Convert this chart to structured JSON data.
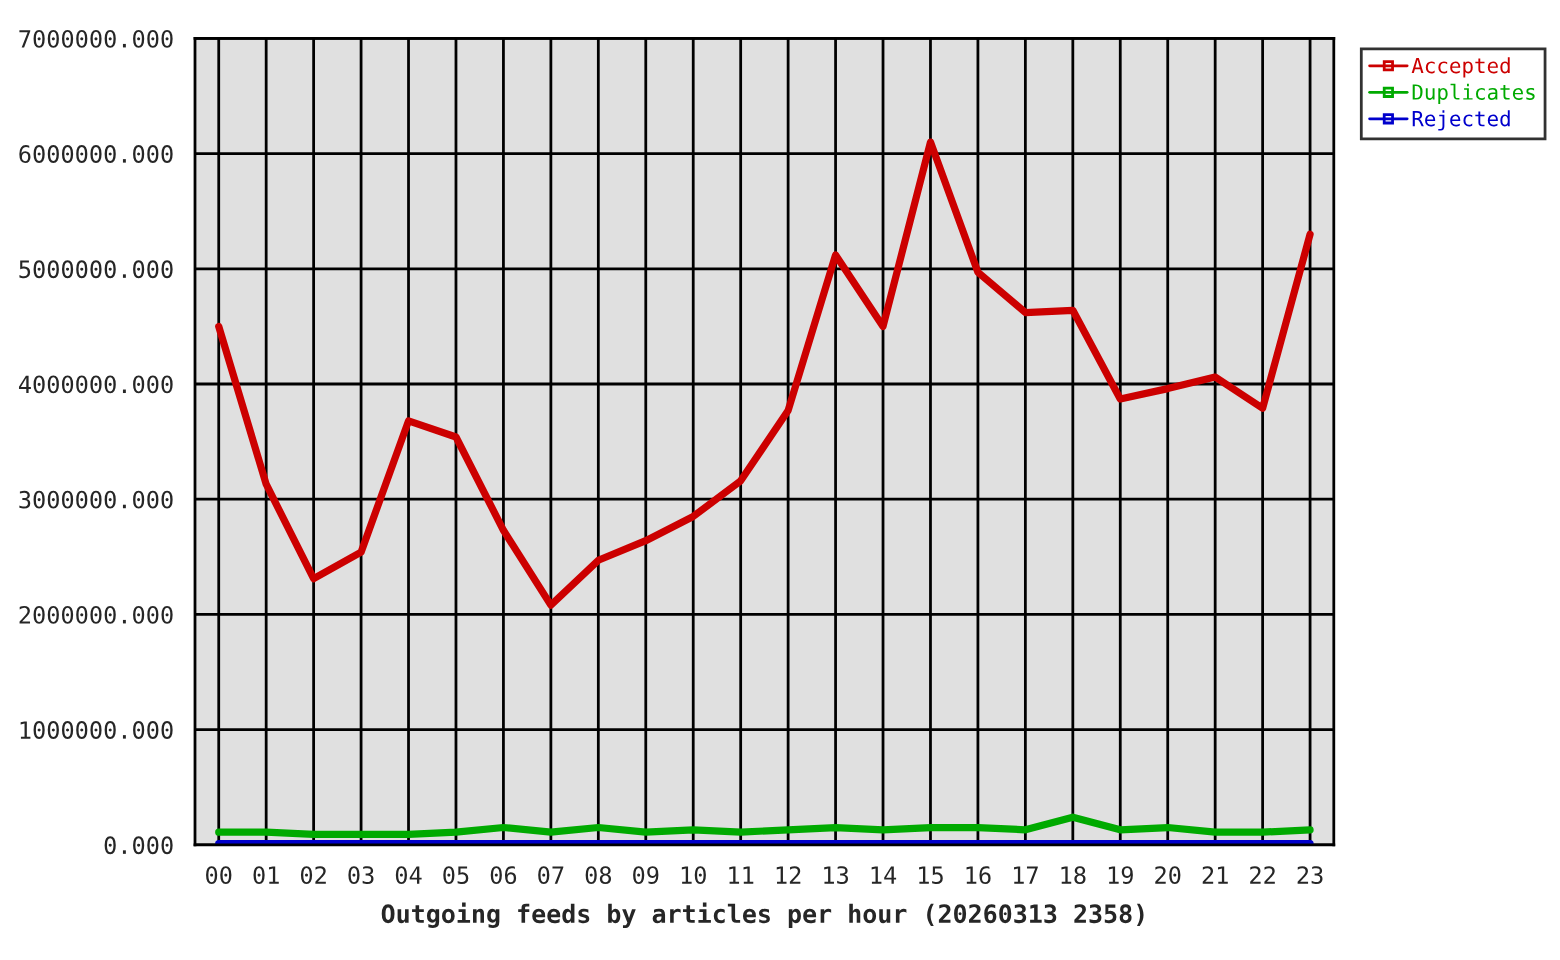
{
  "chart_data": {
    "type": "line",
    "xlabel": "Outgoing feeds by articles per hour (20260313 2358)",
    "categories": [
      "00",
      "01",
      "02",
      "03",
      "04",
      "05",
      "06",
      "07",
      "08",
      "09",
      "10",
      "11",
      "12",
      "13",
      "14",
      "15",
      "16",
      "17",
      "18",
      "19",
      "20",
      "21",
      "22",
      "23"
    ],
    "series": [
      {
        "name": "Accepted",
        "color": "#cc0000",
        "values": [
          4500000,
          3130000,
          2310000,
          2540000,
          3680000,
          3540000,
          2730000,
          2080000,
          2470000,
          2640000,
          2850000,
          3160000,
          3770000,
          5120000,
          4500000,
          6100000,
          4970000,
          4620000,
          4640000,
          3870000,
          3960000,
          4060000,
          3790000,
          5300000
        ]
      },
      {
        "name": "Duplicates",
        "color": "#00aa00",
        "values": [
          110000,
          110000,
          90000,
          90000,
          90000,
          110000,
          150000,
          110000,
          150000,
          110000,
          130000,
          110000,
          130000,
          150000,
          130000,
          150000,
          150000,
          130000,
          240000,
          130000,
          150000,
          110000,
          110000,
          130000
        ]
      },
      {
        "name": "Rejected",
        "color": "#0000cc",
        "values": [
          10000,
          10000,
          10000,
          10000,
          10000,
          10000,
          10000,
          10000,
          10000,
          10000,
          10000,
          10000,
          10000,
          10000,
          10000,
          10000,
          10000,
          10000,
          10000,
          10000,
          10000,
          10000,
          10000,
          10000
        ]
      }
    ],
    "ylim": [
      0,
      7000000
    ],
    "yticks": [
      {
        "value": 0,
        "label": "0.000"
      },
      {
        "value": 1000000,
        "label": "1000000.000"
      },
      {
        "value": 2000000,
        "label": "2000000.000"
      },
      {
        "value": 3000000,
        "label": "3000000.000"
      },
      {
        "value": 4000000,
        "label": "4000000.000"
      },
      {
        "value": 5000000,
        "label": "5000000.000"
      },
      {
        "value": 6000000,
        "label": "6000000.000"
      },
      {
        "value": 7000000,
        "label": "7000000.000"
      }
    ],
    "grid": true,
    "legend": "top right",
    "marker": "none",
    "line_style": "solid"
  }
}
